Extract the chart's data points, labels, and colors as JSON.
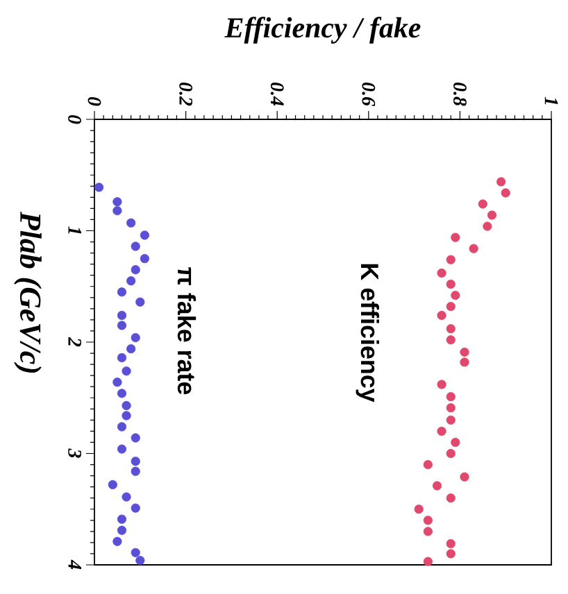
{
  "chart_data": {
    "type": "scatter",
    "xlabel": "Efficiency / fake",
    "ylabel": "Plab (GeV/c)",
    "xlim": [
      0,
      1
    ],
    "ylim": [
      4,
      0
    ],
    "xticks": [
      0,
      0.2,
      0.4,
      0.6,
      0.8,
      1
    ],
    "yticks": [
      0,
      1,
      2,
      3,
      4
    ],
    "marker": "circle",
    "series": [
      {
        "name": "K efficiency",
        "color": "#e0486e",
        "x": [
          0.89,
          0.9,
          0.85,
          0.87,
          0.86,
          0.79,
          0.83,
          0.78,
          0.76,
          0.78,
          0.79,
          0.78,
          0.76,
          0.78,
          0.78,
          0.81,
          0.81,
          0.76,
          0.78,
          0.78,
          0.78,
          0.76,
          0.79,
          0.78,
          0.73,
          0.81,
          0.75,
          0.78,
          0.71,
          0.73,
          0.73,
          0.78,
          0.78,
          0.73
        ],
        "values": [
          0.56,
          0.66,
          0.76,
          0.86,
          0.96,
          1.06,
          1.16,
          1.26,
          1.38,
          1.48,
          1.58,
          1.68,
          1.76,
          1.88,
          1.98,
          2.09,
          2.18,
          2.38,
          2.49,
          2.59,
          2.7,
          2.8,
          2.9,
          3.0,
          3.1,
          3.21,
          3.29,
          3.4,
          3.5,
          3.6,
          3.7,
          3.81,
          3.9,
          3.97
        ]
      },
      {
        "name": "π fake rate",
        "color": "#5b4fd6",
        "x": [
          0.01,
          0.05,
          0.05,
          0.08,
          0.11,
          0.09,
          0.11,
          0.09,
          0.08,
          0.06,
          0.1,
          0.06,
          0.06,
          0.09,
          0.08,
          0.06,
          0.07,
          0.05,
          0.06,
          0.07,
          0.07,
          0.06,
          0.09,
          0.06,
          0.09,
          0.09,
          0.04,
          0.07,
          0.09,
          0.06,
          0.06,
          0.05,
          0.09,
          0.1
        ],
        "values": [
          0.61,
          0.74,
          0.82,
          0.93,
          1.04,
          1.14,
          1.25,
          1.35,
          1.45,
          1.55,
          1.64,
          1.76,
          1.85,
          1.96,
          2.06,
          2.14,
          2.26,
          2.36,
          2.46,
          2.57,
          2.66,
          2.76,
          2.86,
          2.96,
          3.07,
          3.16,
          3.28,
          3.39,
          3.49,
          3.59,
          3.69,
          3.79,
          3.89,
          3.96
        ]
      }
    ]
  }
}
